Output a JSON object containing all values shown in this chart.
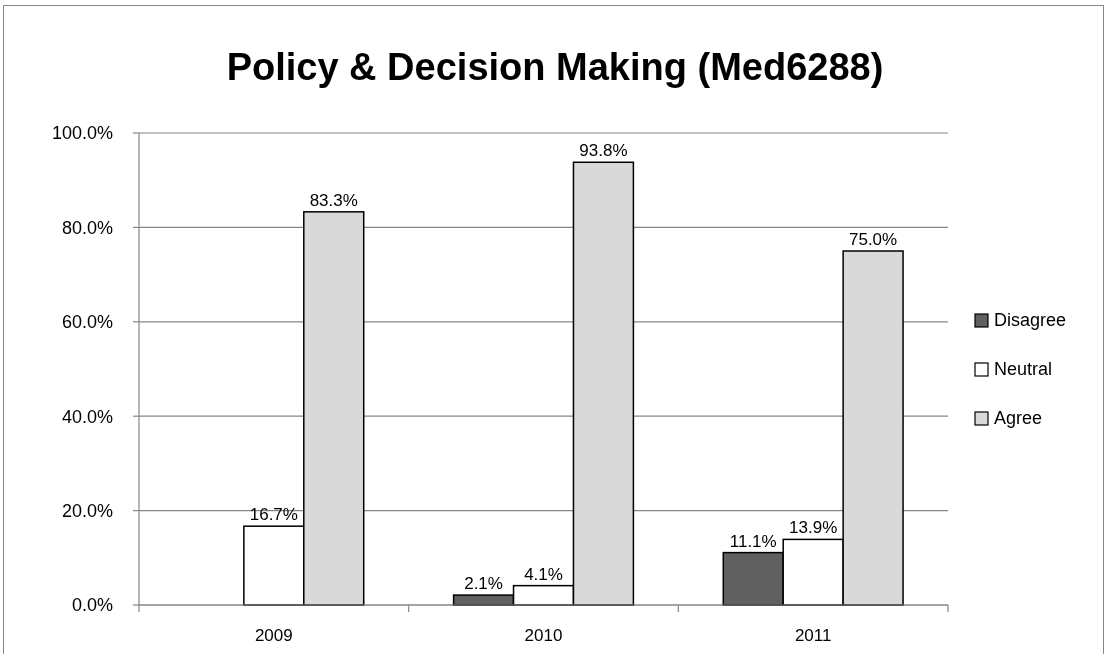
{
  "chart_data": {
    "type": "bar",
    "title": "Policy & Decision Making (Med6288)",
    "categories": [
      "2009",
      "2010",
      "2011"
    ],
    "series": [
      {
        "name": "Disagree",
        "color": "#606060",
        "values": [
          null,
          2.1,
          11.1
        ],
        "value_labels": [
          null,
          "2.1%",
          "11.1%"
        ]
      },
      {
        "name": "Neutral",
        "color": "#ffffff",
        "values": [
          16.7,
          4.1,
          13.9
        ],
        "value_labels": [
          "16.7%",
          "4.1%",
          "13.9%"
        ]
      },
      {
        "name": "Agree",
        "color": "#d9d9d9",
        "values": [
          83.3,
          93.8,
          75.0
        ],
        "value_labels": [
          "83.3%",
          "93.8%",
          "75.0%"
        ]
      }
    ],
    "ylim": [
      0,
      100
    ],
    "yticks": [
      {
        "value": 0,
        "label": "0.0%"
      },
      {
        "value": 20,
        "label": "20.0%"
      },
      {
        "value": 40,
        "label": "40.0%"
      },
      {
        "value": 60,
        "label": "60.0%"
      },
      {
        "value": 80,
        "label": "80.0%"
      },
      {
        "value": 100,
        "label": "100.0%"
      }
    ],
    "grid": "y",
    "legend": "right"
  }
}
